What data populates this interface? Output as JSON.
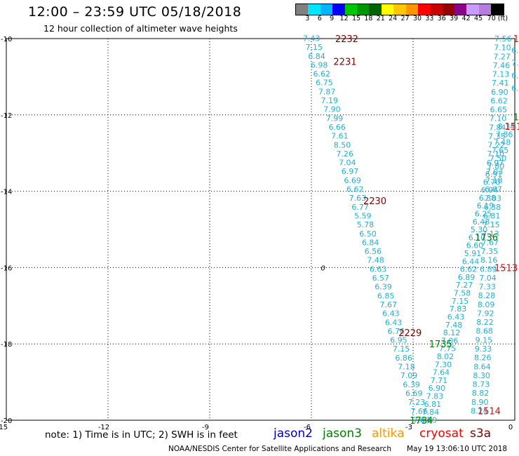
{
  "header": {
    "title": "12:00 – 23:59 UTC 05/18/2018",
    "subtitle": "12 hour collection of altimeter wave heights"
  },
  "colorbar": {
    "colors": [
      "#808080",
      "#00e5ff",
      "#00b4ff",
      "#0000ff",
      "#00c800",
      "#009600",
      "#006400",
      "#ffff00",
      "#ffc800",
      "#ff9600",
      "#ff0000",
      "#c80000",
      "#960000",
      "#8b008b",
      "#cc99ff",
      "#b57edc",
      "#000000"
    ],
    "labels": [
      "3",
      "6",
      "9",
      "12",
      "15",
      "18",
      "21",
      "24",
      "27",
      "30",
      "33",
      "36",
      "39",
      "42",
      "45",
      "70 (ft)"
    ]
  },
  "axes": {
    "lon_ticks": [
      "-15",
      "-12",
      "-9",
      "-6",
      "-3",
      "0"
    ],
    "lat_ticks": [
      "-10",
      "-12",
      "-14",
      "-16",
      "-18",
      "-20"
    ]
  },
  "map_labels": [
    {
      "text": "0",
      "lon": -5.72,
      "lat": -16.0
    }
  ],
  "tracks": [
    {
      "id": "cryosat-descending-west",
      "start": {
        "lon": -6.25,
        "lat": -9.99
      },
      "end": {
        "lon": -3.0,
        "lat": -19.99
      },
      "values": [
        "7.43",
        "7.15",
        "6.84",
        "6.98",
        "6.62",
        "6.75",
        "7.87",
        "7.19",
        "7.90",
        "7.99",
        "6.66",
        "7.61",
        "8.50",
        "7.26",
        "7.04",
        "6.97",
        "6.69",
        "6.62",
        "7.63",
        "6.77",
        "5.59",
        "5.78",
        "6.50",
        "6.84",
        "6.56",
        "7.48",
        "6.63",
        "6.57",
        "6.39",
        "6.85",
        "7.67",
        "6.43",
        "6.43",
        "6.76",
        "6.95",
        "7.15",
        "6.86",
        "7.18",
        "7.09",
        "6.39",
        "6.69",
        "7.23",
        "7.66",
        "7.43"
      ]
    },
    {
      "id": "jason3-ascending-mid",
      "start": {
        "lon": -2.8,
        "lat": -19.99
      },
      "end": {
        "lon": -0.5,
        "lat": -12.3
      },
      "values": [
        "6.59",
        "7.84",
        "6.81",
        "7.83",
        "6.90",
        "7.71",
        "7.64",
        "7.30",
        "8.02",
        "7.75",
        "7.06",
        "8.12",
        "7.48",
        "6.43",
        "7.83",
        "7.15",
        "7.58",
        "7.27",
        "6.89",
        "6.62",
        "6.44",
        "5.91",
        "6.60",
        "6.10",
        "5.30",
        "6.48",
        "6.25",
        "6.19",
        "6.38",
        "6.94",
        "6.70",
        "6.91",
        "7.80",
        "7.50",
        "7.65",
        "7.48",
        "7.86",
        "8.34"
      ]
    },
    {
      "id": "cryosat-ascending-east",
      "start": {
        "lon": -1.3,
        "lat": -19.75
      },
      "end": {
        "lon": -0.6,
        "lat": -10.0
      },
      "values": [
        "8.24",
        "8.90",
        "8.82",
        "8.73",
        "8.30",
        "8.64",
        "8.26",
        "9.33",
        "9.15",
        "8.68",
        "8.22",
        "7.92",
        "8.09",
        "8.28",
        "7.33",
        "7.04",
        "6.89",
        "8.16",
        "7.35",
        "7.67",
        "7.13",
        "7.15",
        "6.81",
        "6.38",
        "7.03",
        "6.87",
        "7.18",
        "7.03",
        "6.97",
        "7.10",
        "7.22",
        "7.35",
        "7.84",
        "7.10",
        "6.65",
        "6.62",
        "6.90",
        "7.41",
        "7.13",
        "7.46",
        "7.27",
        "7.10",
        "7.56"
      ]
    },
    {
      "id": "east-edge-partial",
      "start": {
        "lon": -0.1,
        "lat": -10.3
      },
      "end": {
        "lon": -0.1,
        "lat": -11.3
      },
      "values": [
        "6.",
        "7.0",
        "6.2",
        "6.47"
      ]
    }
  ],
  "time_labels": [
    {
      "text": "2232",
      "lon": -5.3,
      "lat": -10.0,
      "color": "#800000"
    },
    {
      "text": "2231",
      "lon": -5.35,
      "lat": -10.6,
      "color": "#800000"
    },
    {
      "text": "2230",
      "lon": -4.47,
      "lat": -14.25,
      "color": "#800000"
    },
    {
      "text": "2229",
      "lon": -3.43,
      "lat": -17.7,
      "color": "#800000"
    },
    {
      "text": "1734",
      "lon": -3.1,
      "lat": -20.0,
      "color": "#008000"
    },
    {
      "text": "1735",
      "lon": -2.53,
      "lat": -18.0,
      "color": "#008000"
    },
    {
      "text": "1736",
      "lon": -1.18,
      "lat": -15.2,
      "color": "#008000"
    },
    {
      "text": "1513",
      "lon": -0.6,
      "lat": -16.0,
      "color": "#ff0000"
    },
    {
      "text": "1514",
      "lon": -1.1,
      "lat": -19.75,
      "color": "#ff0000"
    },
    {
      "text": "151",
      "lon": -0.3,
      "lat": -12.3,
      "color": "#ff0000"
    },
    {
      "text": "1",
      "lon": -0.05,
      "lat": -12.05,
      "color": "#008000"
    },
    {
      "text": "1",
      "lon": -0.05,
      "lat": -10.0,
      "color": "#ff0000"
    }
  ],
  "footer": {
    "note": "note: 1) Time is in UTC; 2) SWH is in feet",
    "legend": [
      {
        "text": "jason2",
        "color": "#0000cc"
      },
      {
        "text": "jason3",
        "color": "#008000"
      },
      {
        "text": "altika",
        "color": "#ff9900"
      },
      {
        "text": "cryosat",
        "color": "#ff0000"
      },
      {
        "text": "s3a",
        "color": "#800000"
      }
    ],
    "credit": "NOAA/NESDIS Center for Satellite Applications and Research",
    "timestamp": "May 19 13:06:10 UTC 2018"
  }
}
